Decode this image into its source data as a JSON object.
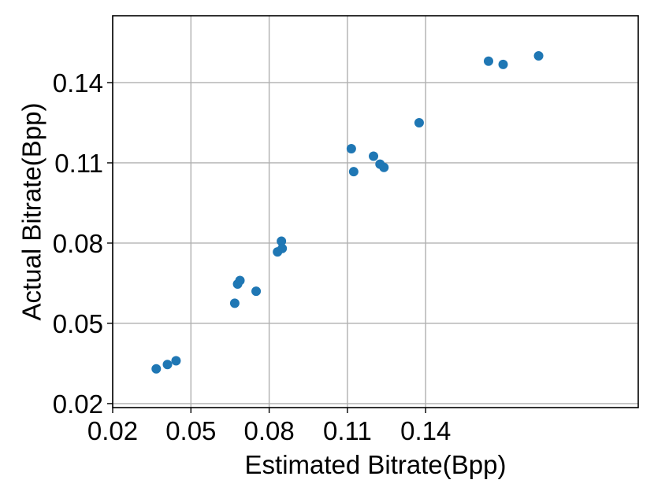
{
  "chart_data": {
    "type": "scatter",
    "xlabel": "Estimated Bitrate(Bpp)",
    "ylabel": "Actual Bitrate(Bpp)",
    "xlim": [
      0.02,
      0.2215
    ],
    "ylim": [
      0.0185,
      0.165
    ],
    "xticks": [
      0.02,
      0.05,
      0.08,
      0.11,
      0.14
    ],
    "xtick_labels": [
      "0.02",
      "0.05",
      "0.08",
      "0.11",
      "0.14"
    ],
    "yticks": [
      0.02,
      0.05,
      0.08,
      0.11,
      0.14
    ],
    "ytick_labels": [
      "0.02",
      "0.05",
      "0.08",
      "0.11",
      "0.14"
    ],
    "grid": true,
    "marker_color": "#1f77b4",
    "points": [
      {
        "x": 0.0367,
        "y": 0.033
      },
      {
        "x": 0.041,
        "y": 0.0346
      },
      {
        "x": 0.0443,
        "y": 0.036
      },
      {
        "x": 0.0668,
        "y": 0.0575
      },
      {
        "x": 0.0679,
        "y": 0.0647
      },
      {
        "x": 0.0688,
        "y": 0.066
      },
      {
        "x": 0.075,
        "y": 0.062
      },
      {
        "x": 0.0832,
        "y": 0.0767
      },
      {
        "x": 0.0847,
        "y": 0.0807
      },
      {
        "x": 0.085,
        "y": 0.078
      },
      {
        "x": 0.1115,
        "y": 0.1153
      },
      {
        "x": 0.1124,
        "y": 0.1067
      },
      {
        "x": 0.12,
        "y": 0.1125
      },
      {
        "x": 0.1225,
        "y": 0.1095
      },
      {
        "x": 0.124,
        "y": 0.1083
      },
      {
        "x": 0.1375,
        "y": 0.125
      },
      {
        "x": 0.1641,
        "y": 0.148
      },
      {
        "x": 0.1697,
        "y": 0.1468
      },
      {
        "x": 0.1833,
        "y": 0.15
      }
    ]
  }
}
